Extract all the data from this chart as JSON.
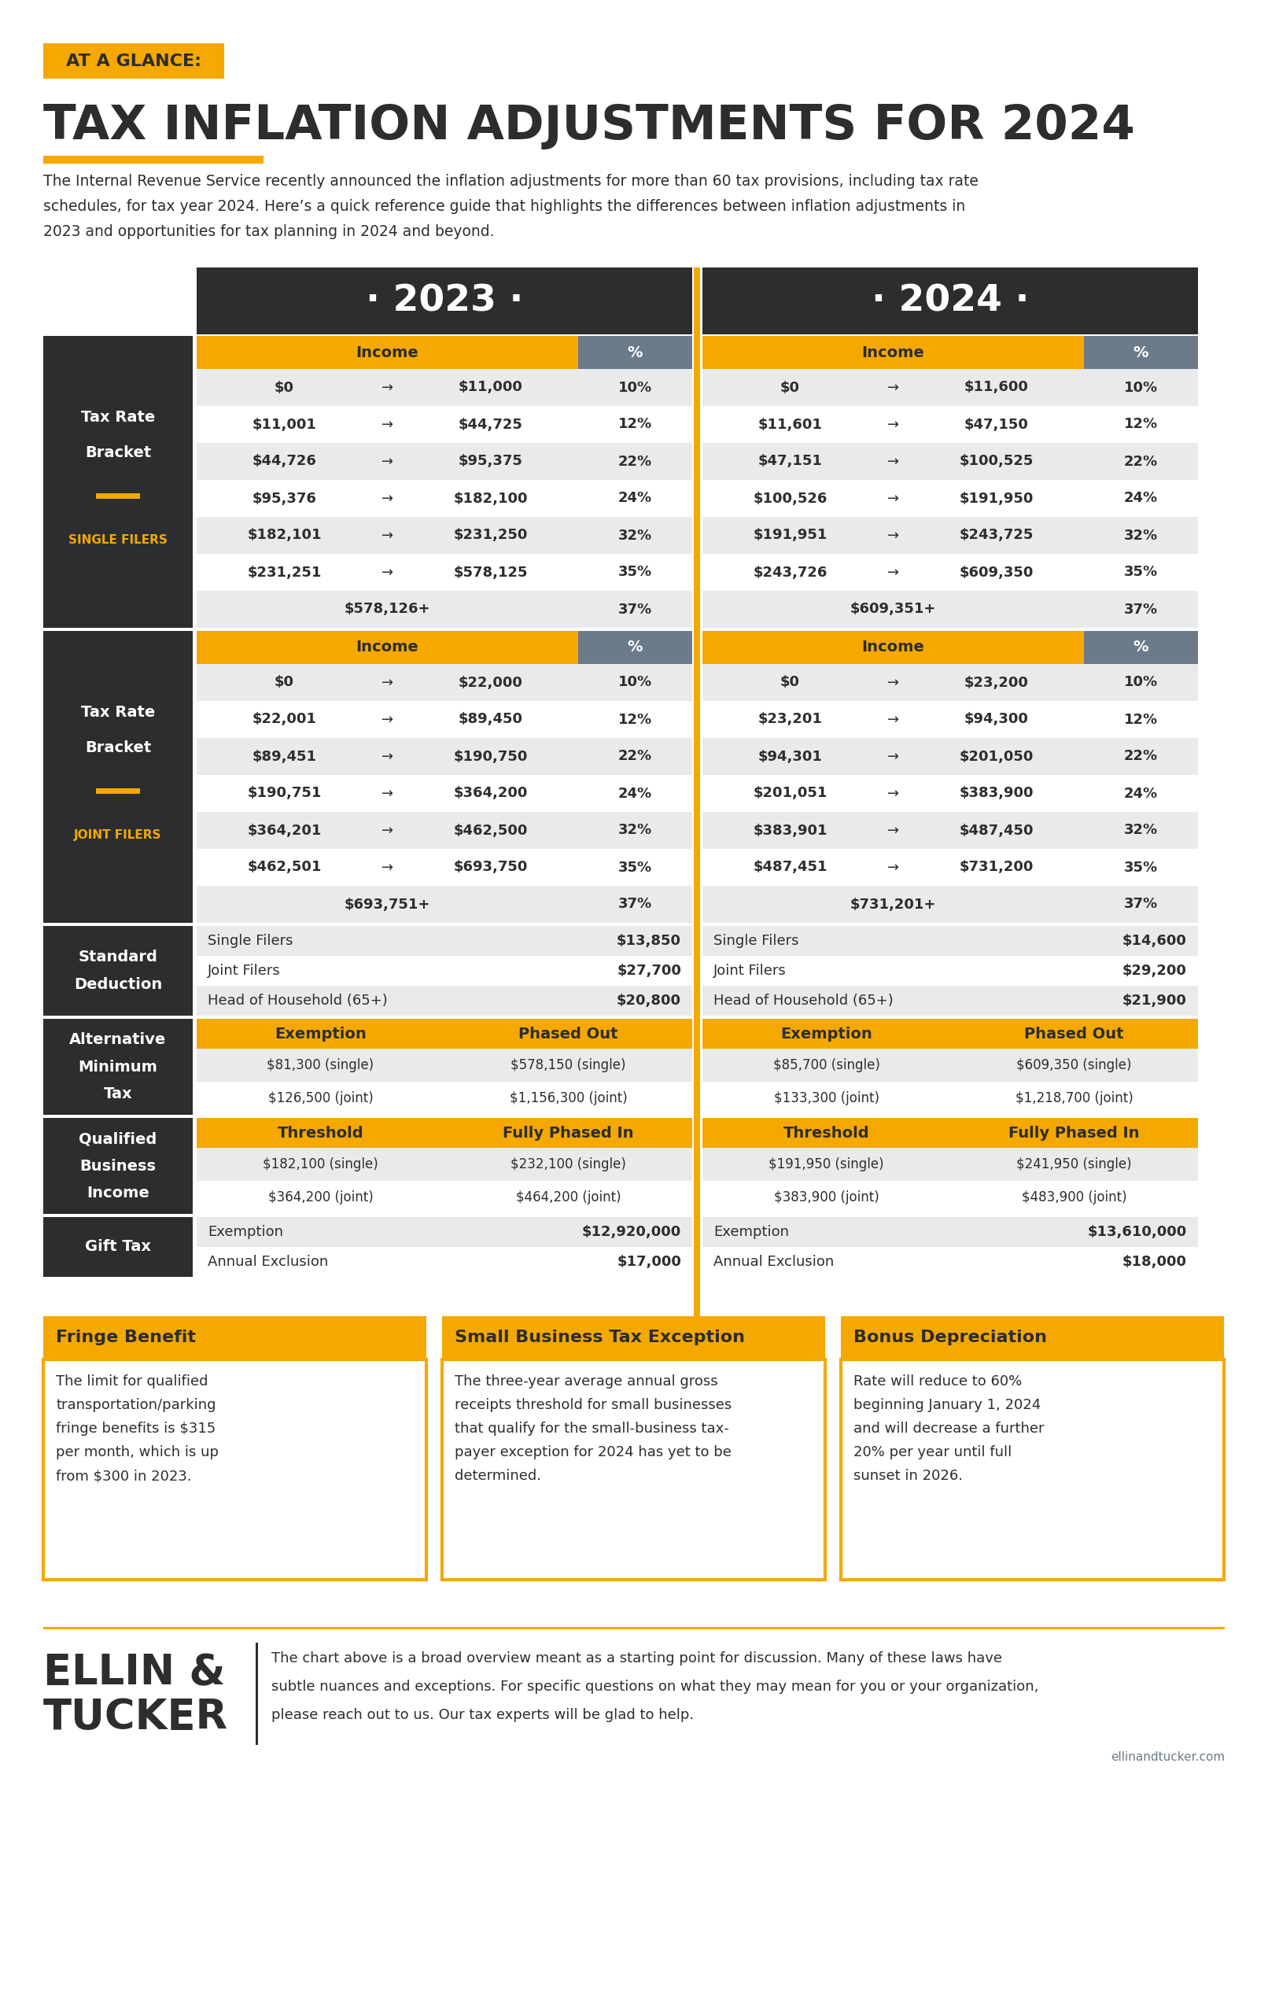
{
  "bg_color": "#ffffff",
  "dark_color": "#2b2d2f",
  "gold_color": "#f5a800",
  "gray_color": "#6b7b8a",
  "light_gray": "#e8eaec",
  "white": "#ffffff",
  "title_tag": "AT A GLANCE:",
  "main_title": "TAX INFLATION ADJUSTMENTS FOR 2024",
  "subtitle_line1": "The Internal Revenue Service recently announced the inflation adjustments for more than 60 tax provisions, including tax rate",
  "subtitle_line2": "schedules, for tax year 2024. Here’s a quick reference guide that highlights the differences between inflation adjustments in",
  "subtitle_line3": "2023 and opportunities for tax planning in 2024 and beyond.",
  "year_2023": "· 2023 ·",
  "year_2024": "· 2024 ·",
  "single_2023": [
    [
      "$0",
      "$11,000",
      "10%"
    ],
    [
      "$11,001",
      "$44,725",
      "12%"
    ],
    [
      "$44,726",
      "$95,375",
      "22%"
    ],
    [
      "$95,376",
      "$182,100",
      "24%"
    ],
    [
      "$182,101",
      "$231,250",
      "32%"
    ],
    [
      "$231,251",
      "$578,125",
      "35%"
    ],
    [
      "$578,126+",
      "",
      "37%"
    ]
  ],
  "single_2024": [
    [
      "$0",
      "$11,600",
      "10%"
    ],
    [
      "$11,601",
      "$47,150",
      "12%"
    ],
    [
      "$47,151",
      "$100,525",
      "22%"
    ],
    [
      "$100,526",
      "$191,950",
      "24%"
    ],
    [
      "$191,951",
      "$243,725",
      "32%"
    ],
    [
      "$243,726",
      "$609,350",
      "35%"
    ],
    [
      "$609,351+",
      "",
      "37%"
    ]
  ],
  "joint_2023": [
    [
      "$0",
      "$22,000",
      "10%"
    ],
    [
      "$22,001",
      "$89,450",
      "12%"
    ],
    [
      "$89,451",
      "$190,750",
      "22%"
    ],
    [
      "$190,751",
      "$364,200",
      "24%"
    ],
    [
      "$364,201",
      "$462,500",
      "32%"
    ],
    [
      "$462,501",
      "$693,750",
      "35%"
    ],
    [
      "$693,751+",
      "",
      "37%"
    ]
  ],
  "joint_2024": [
    [
      "$0",
      "$23,200",
      "10%"
    ],
    [
      "$23,201",
      "$94,300",
      "12%"
    ],
    [
      "$94,301",
      "$201,050",
      "22%"
    ],
    [
      "$201,051",
      "$383,900",
      "24%"
    ],
    [
      "$383,901",
      "$487,450",
      "32%"
    ],
    [
      "$487,451",
      "$731,200",
      "35%"
    ],
    [
      "$731,201+",
      "",
      "37%"
    ]
  ],
  "std_ded_2023": [
    [
      "Single Filers",
      "$13,850"
    ],
    [
      "Joint Filers",
      "$27,700"
    ],
    [
      "Head of Household (65+)",
      "$20,800"
    ]
  ],
  "std_ded_2024": [
    [
      "Single Filers",
      "$14,600"
    ],
    [
      "Joint Filers",
      "$29,200"
    ],
    [
      "Head of Household (65+)",
      "$21,900"
    ]
  ],
  "amt_2023_header": [
    "Exemption",
    "Phased Out"
  ],
  "amt_2023": [
    [
      "$81,300 (single)",
      "$578,150 (single)"
    ],
    [
      "$126,500 (joint)",
      "$1,156,300 (joint)"
    ]
  ],
  "amt_2024_header": [
    "Exemption",
    "Phased Out"
  ],
  "amt_2024": [
    [
      "$85,700 (single)",
      "$609,350 (single)"
    ],
    [
      "$133,300 (joint)",
      "$1,218,700 (joint)"
    ]
  ],
  "qbi_2023_header": [
    "Threshold",
    "Fully Phased In"
  ],
  "qbi_2023": [
    [
      "$182,100 (single)",
      "$232,100 (single)"
    ],
    [
      "$364,200 (joint)",
      "$464,200 (joint)"
    ]
  ],
  "qbi_2024_header": [
    "Threshold",
    "Fully Phased In"
  ],
  "qbi_2024": [
    [
      "$191,950 (single)",
      "$241,950 (single)"
    ],
    [
      "$383,900 (joint)",
      "$483,900 (joint)"
    ]
  ],
  "gift_2023": [
    [
      "Exemption",
      "$12,920,000"
    ],
    [
      "Annual Exclusion",
      "$17,000"
    ]
  ],
  "gift_2024": [
    [
      "Exemption",
      "$13,610,000"
    ],
    [
      "Annual Exclusion",
      "$18,000"
    ]
  ],
  "fringe_title": "Fringe Benefit",
  "fringe_text_lines": [
    "The limit for qualified",
    "transportation/parking",
    "fringe benefits is $315",
    "per month, which is up",
    "from $300 in 2023."
  ],
  "small_biz_title": "Small Business Tax Exception",
  "small_biz_text_lines": [
    "The three-year average annual gross",
    "receipts threshold for small businesses",
    "that qualify for the small-business tax-",
    "payer exception for 2024 has yet to be",
    "determined."
  ],
  "bonus_dep_title": "Bonus Depreciation",
  "bonus_dep_text_lines": [
    "Rate will reduce to 60%",
    "beginning January 1, 2024",
    "and will decrease a further",
    "20% per year until full",
    "sunset in 2026."
  ],
  "footer_logo1": "ELLIN &",
  "footer_logo2": "TUCKER",
  "footer_text_lines": [
    "The chart above is a broad overview meant as a starting point for discussion. Many of these laws have",
    "subtle nuances and exceptions. For specific questions on what they may mean for you or your organization,",
    "please reach out to us. Our tax experts will be glad to help."
  ],
  "footer_url": "ellinandtucker.com"
}
